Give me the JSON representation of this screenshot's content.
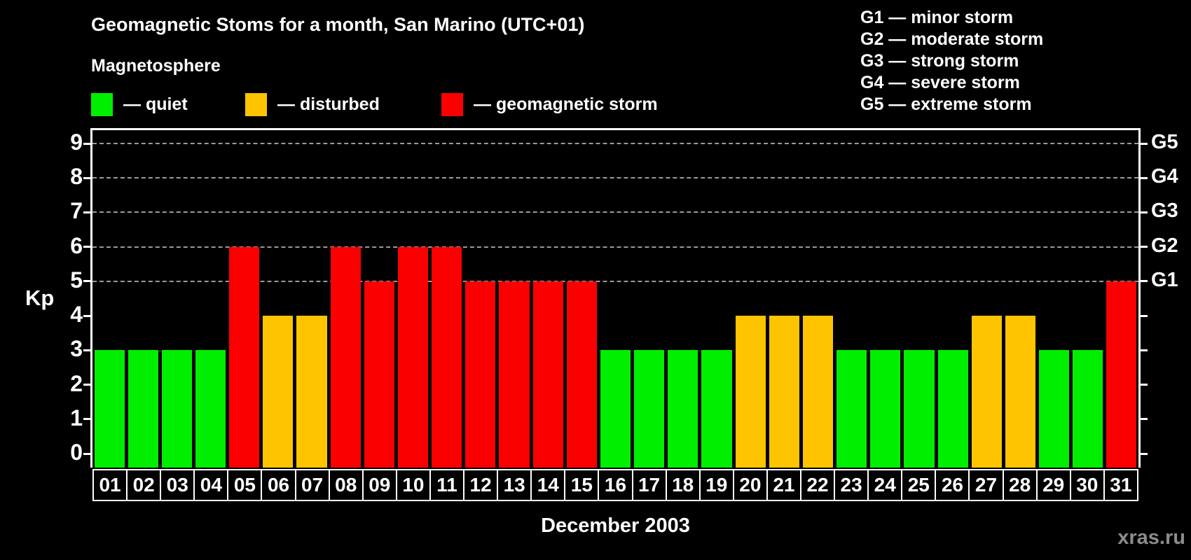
{
  "page": {
    "title": "Geomagnetic Stoms for a month, San Marino (UTC+01)",
    "watermark": "xras.ru"
  },
  "legend": {
    "title": "Magnetosphere",
    "items": [
      {
        "state": "quiet",
        "name": "quiet"
      },
      {
        "state": "disturbed",
        "name": "disturbed"
      },
      {
        "state": "storm",
        "name": "geomagnetic storm"
      }
    ]
  },
  "g_legend": {
    "items": [
      {
        "code": "G1",
        "name": "minor storm"
      },
      {
        "code": "G2",
        "name": "moderate storm"
      },
      {
        "code": "G3",
        "name": "strong storm"
      },
      {
        "code": "G4",
        "name": "severe storm"
      },
      {
        "code": "G5",
        "name": "extreme storm"
      }
    ]
  },
  "chart_data": {
    "type": "bar",
    "title": "Geomagnetic Stoms for a month, San Marino (UTC+01)",
    "xlabel": "December 2003",
    "ylabel": "Kp",
    "ylim": [
      0,
      9
    ],
    "yticks": [
      0,
      1,
      2,
      3,
      4,
      5,
      6,
      7,
      8,
      9
    ],
    "grid": "dashed horizontal lines at Kp 5-9 only",
    "gridlines_at": [
      5,
      6,
      7,
      8,
      9
    ],
    "legend_position": "top",
    "categories": [
      "01",
      "02",
      "03",
      "04",
      "05",
      "06",
      "07",
      "08",
      "09",
      "10",
      "11",
      "12",
      "13",
      "14",
      "15",
      "16",
      "17",
      "18",
      "19",
      "20",
      "21",
      "22",
      "23",
      "24",
      "25",
      "26",
      "27",
      "28",
      "29",
      "30",
      "31"
    ],
    "values": [
      3,
      3,
      3,
      3,
      6,
      4,
      4,
      6,
      5,
      6,
      6,
      5,
      5,
      5,
      5,
      3,
      3,
      3,
      3,
      4,
      4,
      4,
      3,
      3,
      3,
      3,
      4,
      4,
      3,
      3,
      5
    ],
    "states": [
      "quiet",
      "quiet",
      "quiet",
      "quiet",
      "storm",
      "disturbed",
      "disturbed",
      "storm",
      "storm",
      "storm",
      "storm",
      "storm",
      "storm",
      "storm",
      "storm",
      "quiet",
      "quiet",
      "quiet",
      "quiet",
      "disturbed",
      "disturbed",
      "disturbed",
      "quiet",
      "quiet",
      "quiet",
      "quiet",
      "disturbed",
      "disturbed",
      "quiet",
      "quiet",
      "storm"
    ],
    "colors": {
      "quiet": "#00ee00",
      "disturbed": "#ffc400",
      "storm": "#fb0000"
    },
    "right_axis_labels": [
      {
        "label": "G1",
        "kp": 5
      },
      {
        "label": "G2",
        "kp": 6
      },
      {
        "label": "G3",
        "kp": 7
      },
      {
        "label": "G4",
        "kp": 8
      },
      {
        "label": "G5",
        "kp": 9
      }
    ]
  }
}
